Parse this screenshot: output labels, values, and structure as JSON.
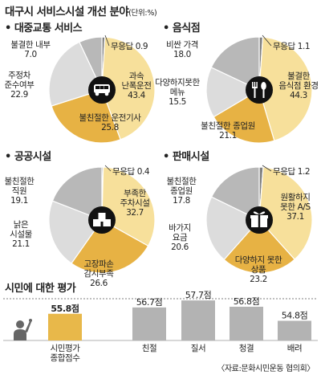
{
  "header": {
    "title": "대구시 서비스시설 개선 분야",
    "unit": "(단위:%)"
  },
  "colors": {
    "light_yellow": "#f7e09b",
    "gold": "#e7b244",
    "light_gray": "#dcdcdc",
    "mid_gray": "#b8b8b8",
    "dark_gray": "#808080",
    "icon_black": "#111111",
    "bar_gray": "#b3b3b3",
    "bar_gold": "#e8b84a"
  },
  "chart_data": [
    {
      "type": "pie",
      "title": "대중교통 서비스",
      "icon": "bus-icon",
      "slices": [
        {
          "label": "무응답",
          "value": 0.9
        },
        {
          "label": "과속 난폭운전",
          "value": 43.4
        },
        {
          "label": "불친절한 운전기사",
          "value": 25.8
        },
        {
          "label": "주정차 준수여부",
          "value": 22.9
        },
        {
          "label": "불결한 내부",
          "value": 7.0
        }
      ]
    },
    {
      "type": "pie",
      "title": "음식점",
      "icon": "fork-spoon-icon",
      "slices": [
        {
          "label": "무응답",
          "value": 1.1
        },
        {
          "label": "불결한 음식점 환경",
          "value": 44.3
        },
        {
          "label": "불친절한 종업원",
          "value": 21.1
        },
        {
          "label": "다양하지못한 메뉴",
          "value": 15.5
        },
        {
          "label": "비싼 가격",
          "value": 18.0
        }
      ]
    },
    {
      "type": "pie",
      "title": "공공시설",
      "icon": "building-icon",
      "slices": [
        {
          "label": "무응답",
          "value": 0.4
        },
        {
          "label": "부족한 주차시설",
          "value": 32.7
        },
        {
          "label": "고장파손 감시부족",
          "value": 26.6
        },
        {
          "label": "낡은 시설물",
          "value": 21.1
        },
        {
          "label": "불친절한 직원",
          "value": 19.1
        }
      ]
    },
    {
      "type": "pie",
      "title": "판매시설",
      "icon": "gift-box-icon",
      "slices": [
        {
          "label": "무응답",
          "value": 1.2
        },
        {
          "label": "원활하지 못한 A/S",
          "value": 37.1
        },
        {
          "label": "다양하지 못한 상품",
          "value": 23.2
        },
        {
          "label": "바가지 요금",
          "value": 20.6
        },
        {
          "label": "불친절한 종업원",
          "value": 17.8
        }
      ]
    },
    {
      "type": "bar",
      "title": "시민에 대한 평가",
      "categories": [
        "시민평가 종합점수",
        "친절",
        "질서",
        "청결",
        "배려"
      ],
      "values": [
        55.8,
        56.7,
        57.7,
        56.8,
        54.8
      ],
      "value_labels": [
        "55.8점",
        "56.7점",
        "57.7점",
        "56.8점",
        "54.8점"
      ],
      "icon": "person-raising-hand-icon"
    }
  ],
  "source": "〈자료:문화시민운동 협의회〉"
}
